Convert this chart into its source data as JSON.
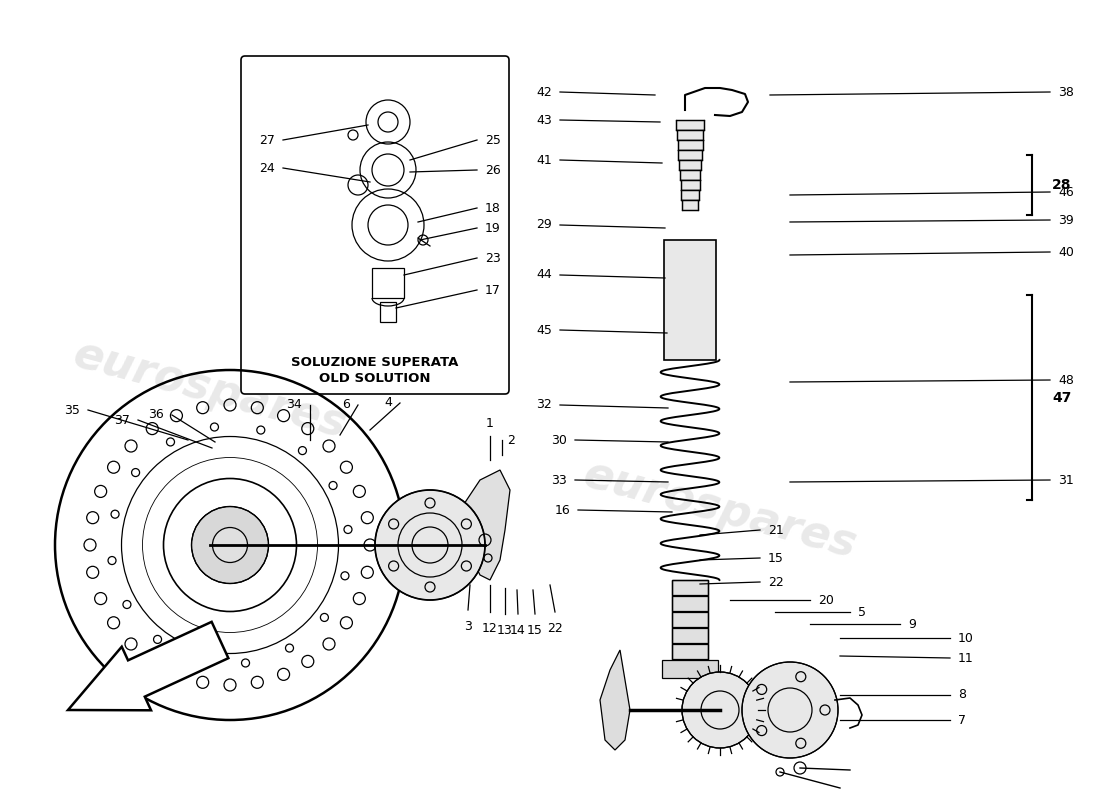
{
  "bg": "#ffffff",
  "lc": "#000000",
  "lw": 0.9,
  "fs": 9,
  "wm_color": "#c8c8c8",
  "wm_alpha": 0.4,
  "wm_fs": 32,
  "box_label1": "SOLUZIONE SUPERATA",
  "box_label2": "OLD SOLUTION",
  "fig_w": 11.0,
  "fig_h": 8.0,
  "dpi": 100
}
